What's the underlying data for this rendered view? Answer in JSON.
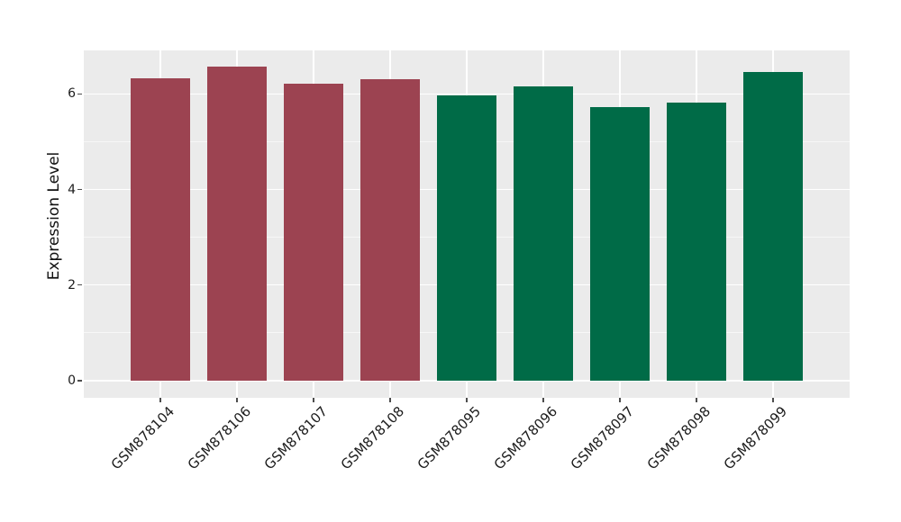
{
  "chart_data": {
    "type": "bar",
    "title": "",
    "xlabel": "",
    "ylabel": "Expression Level",
    "categories": [
      "GSM878104",
      "GSM878106",
      "GSM878107",
      "GSM878108",
      "GSM878095",
      "GSM878096",
      "GSM878097",
      "GSM878098",
      "GSM878099"
    ],
    "values": [
      6.33,
      6.58,
      6.22,
      6.31,
      5.97,
      6.16,
      5.73,
      5.82,
      6.45
    ],
    "bar_colors": [
      "#9c4351",
      "#9c4351",
      "#9c4351",
      "#9c4351",
      "#006b47",
      "#006b47",
      "#006b47",
      "#006b47",
      "#006b47"
    ],
    "palette": {
      "maroon_group": "#9c4351",
      "green_group": "#006b47"
    },
    "groups": [
      {
        "color": "#9c4351",
        "categories": [
          "GSM878104",
          "GSM878106",
          "GSM878107",
          "GSM878108"
        ]
      },
      {
        "color": "#006b47",
        "categories": [
          "GSM878095",
          "GSM878096",
          "GSM878097",
          "GSM878098",
          "GSM878099"
        ]
      }
    ],
    "ylim": [
      -0.36,
      6.91
    ],
    "yticks": [
      0,
      2,
      4,
      6
    ],
    "yticks_minor": [
      1,
      3,
      5
    ],
    "x_tick_rotation_deg": 45,
    "grid": true,
    "legend_position": "none",
    "panel_background": "#ebebeb",
    "figure_background": "#ffffff",
    "grid_major_color": "#ffffff",
    "grid_minor_color": "#ffffff",
    "tick_mark_color": "#4d4d4d",
    "text_color": "#1c1c1c"
  }
}
